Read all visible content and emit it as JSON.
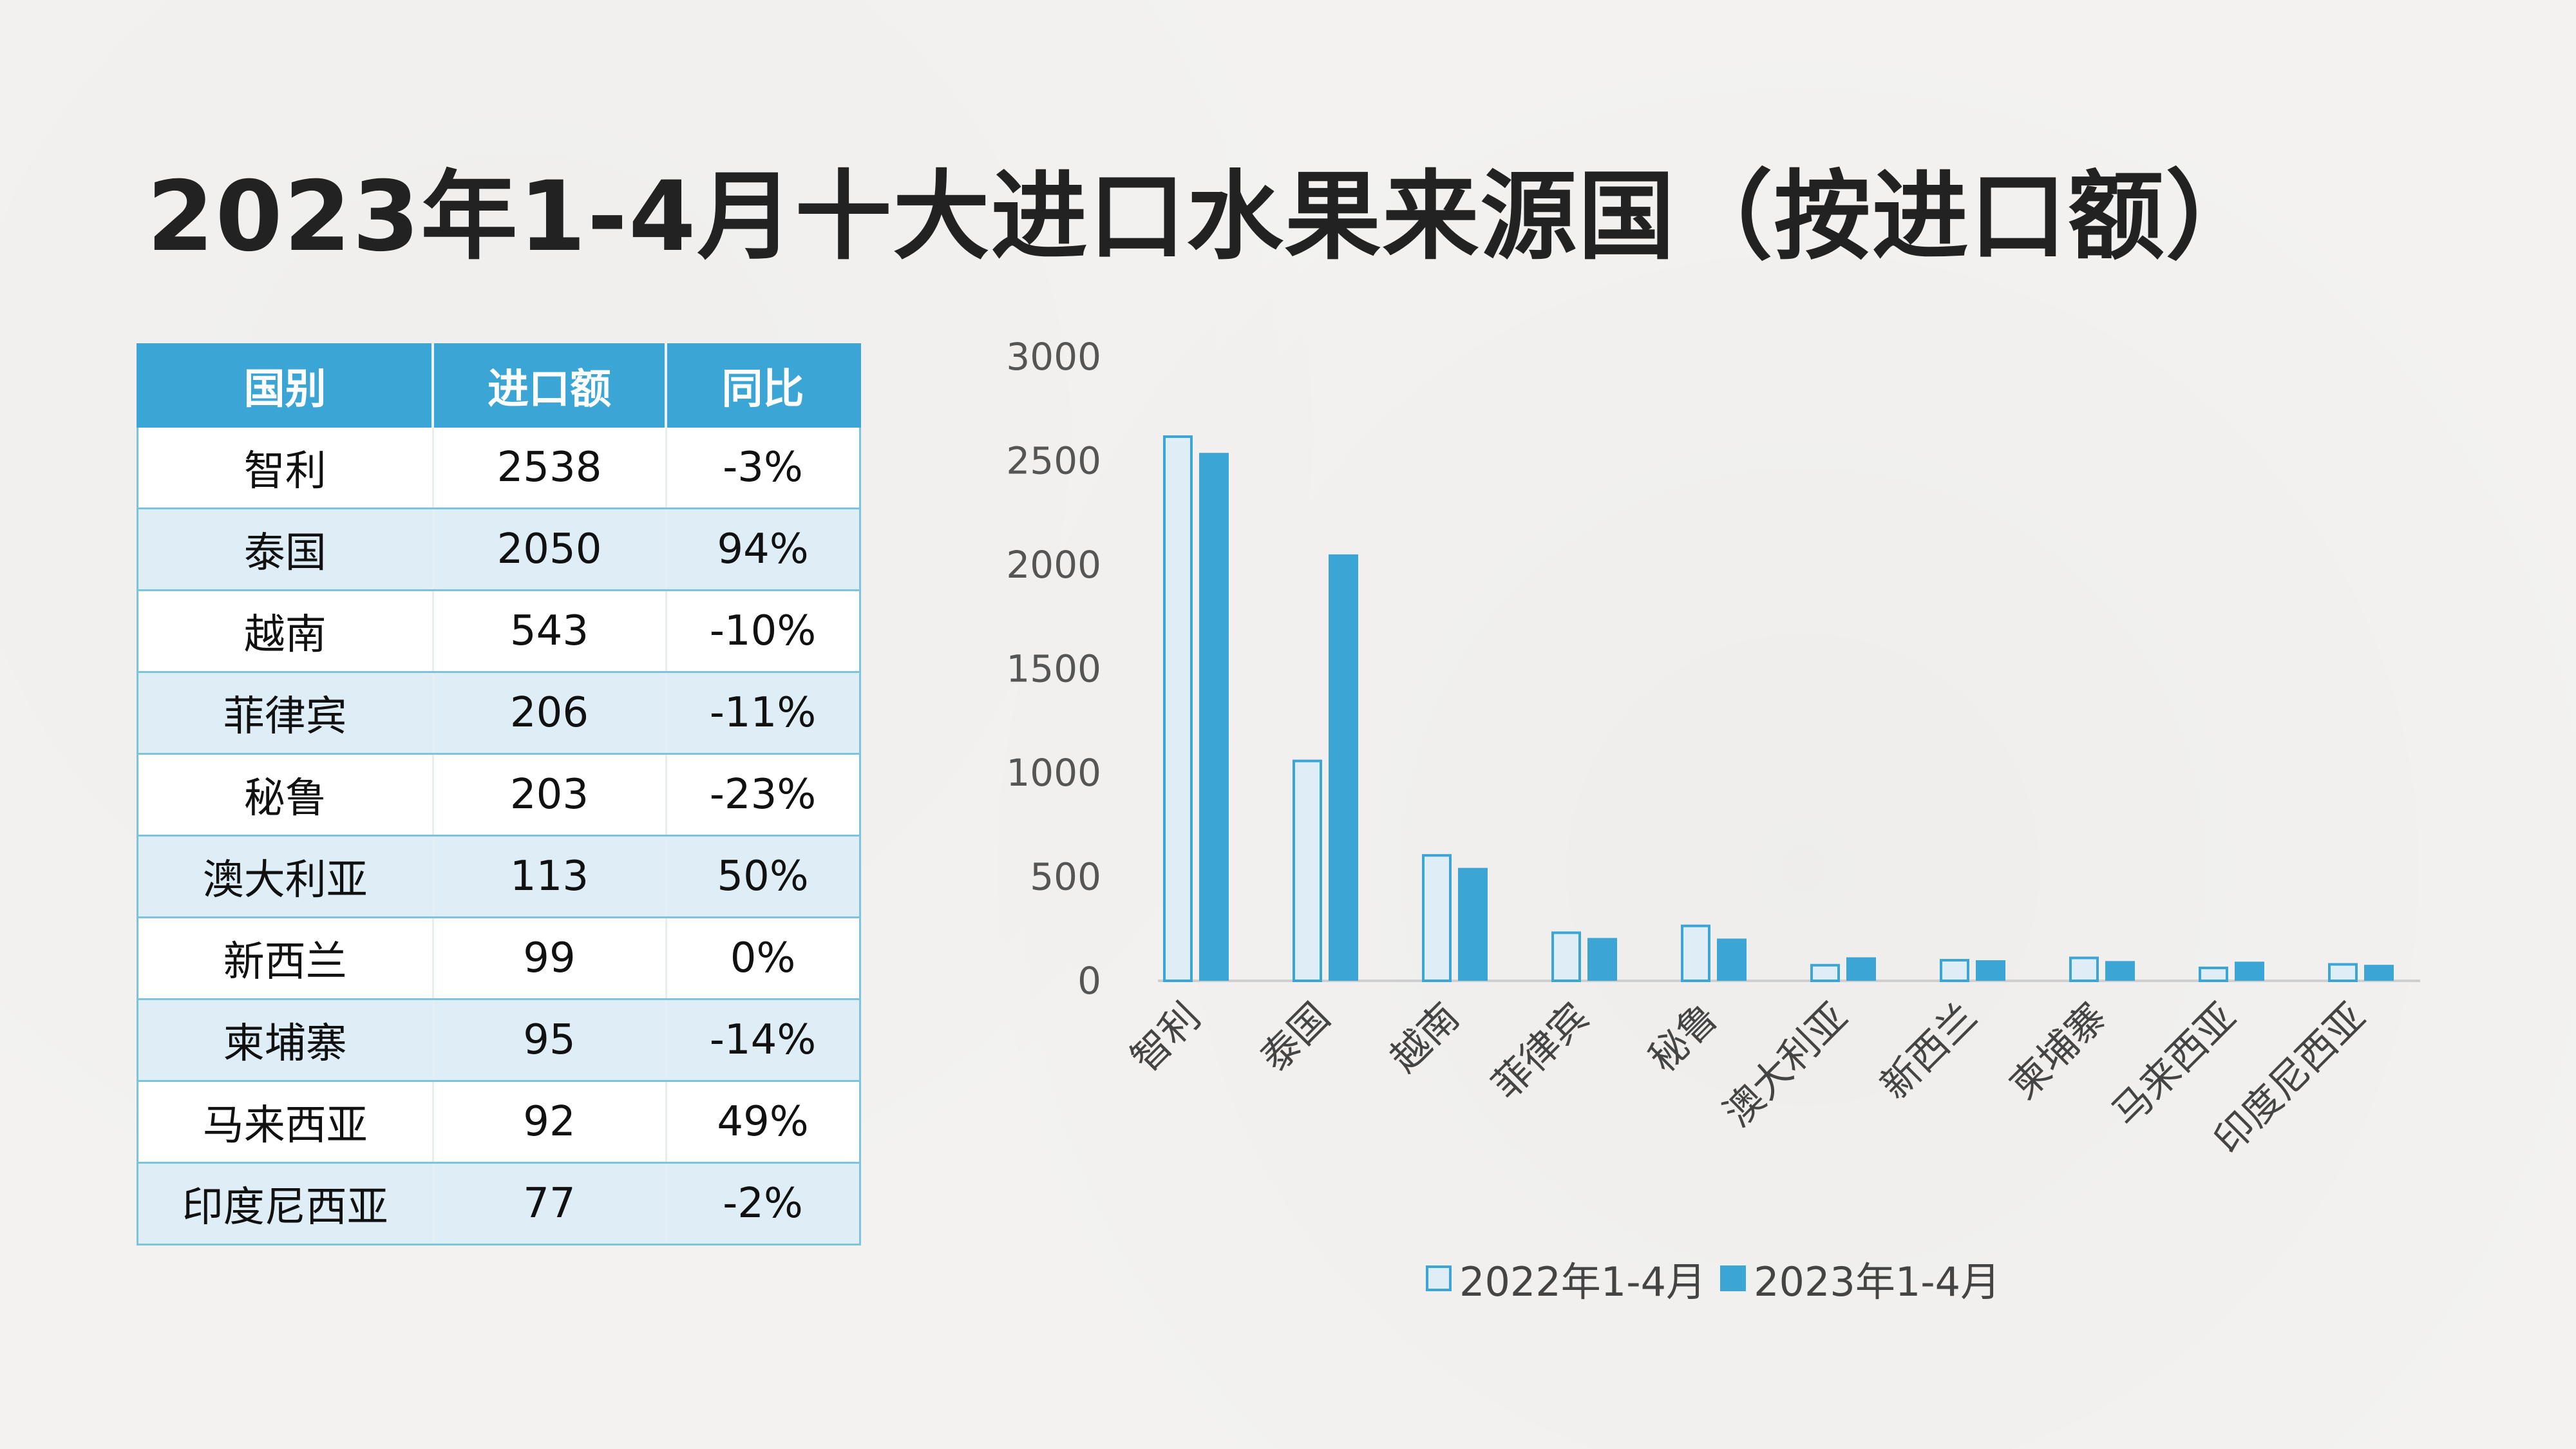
{
  "title": "2023年1-4月十大进口水果来源国（按进口额）",
  "table": {
    "headers": [
      "国别",
      "进口额",
      "同比"
    ],
    "rows": [
      [
        "智利",
        "2538",
        "-3%"
      ],
      [
        "泰国",
        "2050",
        "94%"
      ],
      [
        "越南",
        "543",
        "-10%"
      ],
      [
        "菲律宾",
        "206",
        "-11%"
      ],
      [
        "秘鲁",
        "203",
        "-23%"
      ],
      [
        "澳大利亚",
        "113",
        "50%"
      ],
      [
        "新西兰",
        "99",
        "0%"
      ],
      [
        "柬埔寨",
        "95",
        "-14%"
      ],
      [
        "马来西亚",
        "92",
        "49%"
      ],
      [
        "印度尼西亚",
        "77",
        "-2%"
      ]
    ]
  },
  "chart_data": {
    "type": "bar",
    "categories": [
      "智利",
      "泰国",
      "越南",
      "菲律宾",
      "秘鲁",
      "澳大利亚",
      "新西兰",
      "柬埔寨",
      "马来西亚",
      "印度尼西亚"
    ],
    "series": [
      {
        "name": "2022年1-4月",
        "values": [
          2616,
          1057,
          603,
          231,
          264,
          75,
          99,
          110,
          62,
          79
        ],
        "color": "#deedf6",
        "stroke": "#3ba5d6"
      },
      {
        "name": "2023年1-4月",
        "values": [
          2538,
          2050,
          543,
          206,
          203,
          113,
          99,
          95,
          92,
          77
        ],
        "color": "#3ba5d6"
      }
    ],
    "ylim": [
      0,
      3000
    ],
    "yticks": [
      0,
      500,
      1000,
      1500,
      2000,
      2500,
      3000
    ],
    "grid": false,
    "legend": "bottom"
  }
}
